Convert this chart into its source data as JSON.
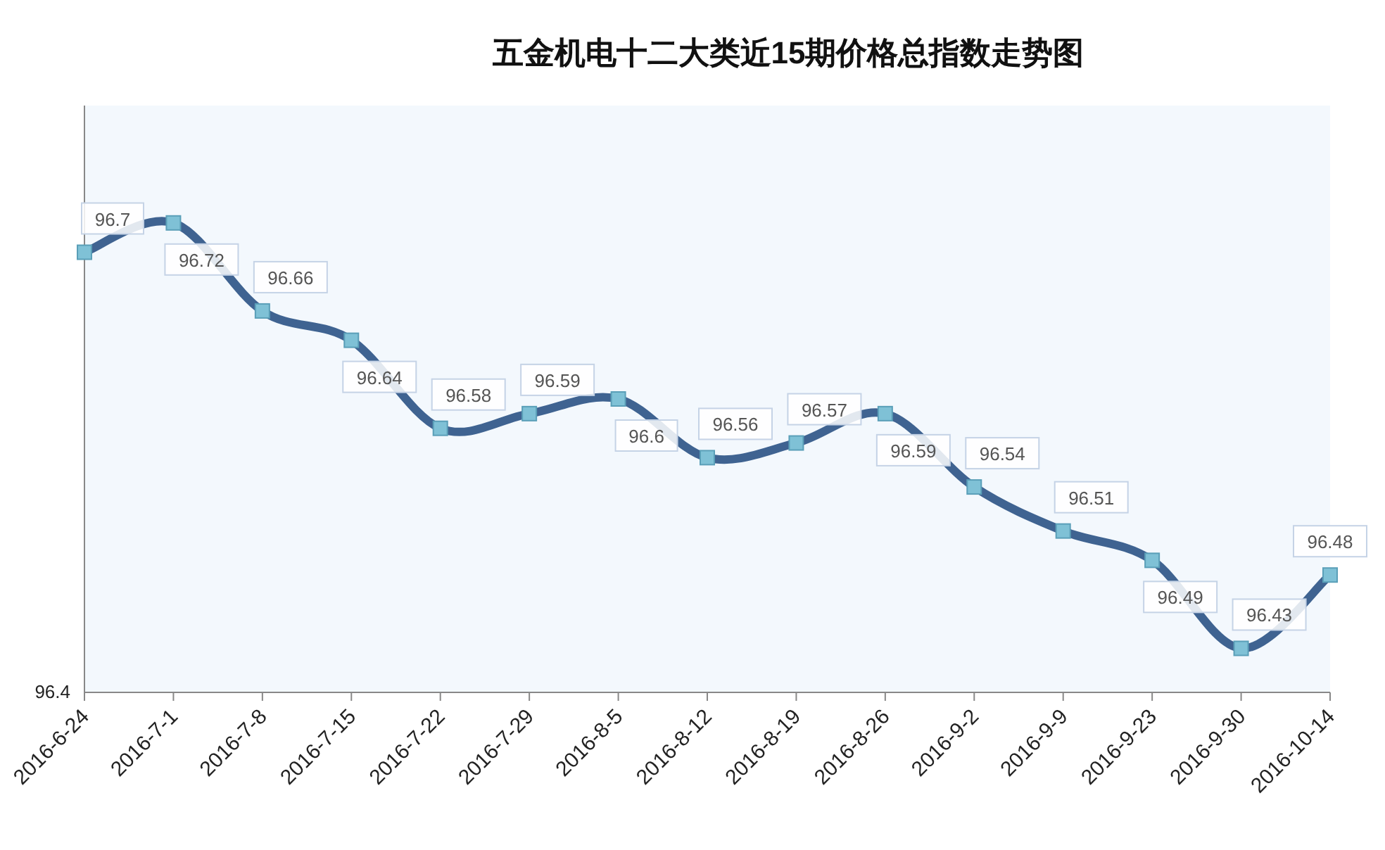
{
  "chart_data": {
    "type": "line",
    "title": "五金机电十二大类近15期价格总指数走势图",
    "categories": [
      "2016-6-24",
      "2016-7-1",
      "2016-7-8",
      "2016-7-15",
      "2016-7-22",
      "2016-7-29",
      "2016-8-5",
      "2016-8-12",
      "2016-8-19",
      "2016-8-26",
      "2016-9-2",
      "2016-9-9",
      "2016-9-23",
      "2016-9-30",
      "2016-10-14"
    ],
    "values": [
      96.7,
      96.72,
      96.66,
      96.64,
      96.58,
      96.59,
      96.6,
      96.56,
      96.57,
      96.59,
      96.54,
      96.51,
      96.49,
      96.43,
      96.48
    ],
    "color": "#3f6391",
    "marker": "square",
    "data_labels": true,
    "ylim": [
      96.4,
      96.8
    ],
    "annotations": [
      "96.4"
    ]
  }
}
